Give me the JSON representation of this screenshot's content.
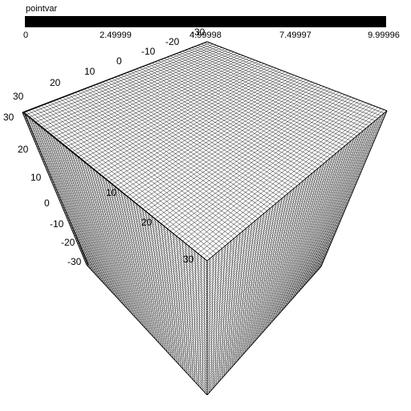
{
  "legend": {
    "title": "pointvar",
    "color": "#000000",
    "ticks": [
      "0",
      "2.49999",
      "4.99998",
      "7.49997",
      "9.99996"
    ]
  },
  "axis_labels": {
    "top_axis": [
      "-20",
      "-10",
      "0",
      "10",
      "20",
      "30"
    ],
    "top_axis_end": "-30",
    "left_axis": [
      "30",
      "20",
      "10",
      "0",
      "-10",
      "-20",
      "-30"
    ],
    "diagonal_axis": [
      "10",
      "20",
      "30"
    ]
  },
  "mesh": {
    "type": "wireframe-cube",
    "line_color": "#000000",
    "background": "#ffffff"
  }
}
